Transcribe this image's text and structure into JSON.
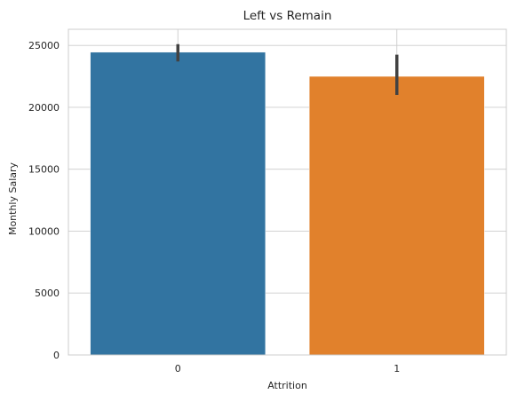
{
  "chart_data": {
    "type": "bar",
    "title": "Left vs Remain",
    "xlabel": "Attrition",
    "ylabel": "Monthly Salary",
    "categories": [
      "0",
      "1"
    ],
    "values": [
      24450,
      22500
    ],
    "error_bars": [
      {
        "low": 23700,
        "high": 25100
      },
      {
        "low": 21000,
        "high": 24250
      }
    ],
    "colors": [
      "#3274a1",
      "#e1812c"
    ],
    "ylim": [
      0,
      26300
    ],
    "yticks": [
      0,
      5000,
      10000,
      15000,
      20000,
      25000
    ],
    "ytick_labels": [
      "0",
      "5000",
      "10000",
      "15000",
      "20000",
      "25000"
    ],
    "grid": true,
    "style": "seaborn-whitegrid"
  }
}
